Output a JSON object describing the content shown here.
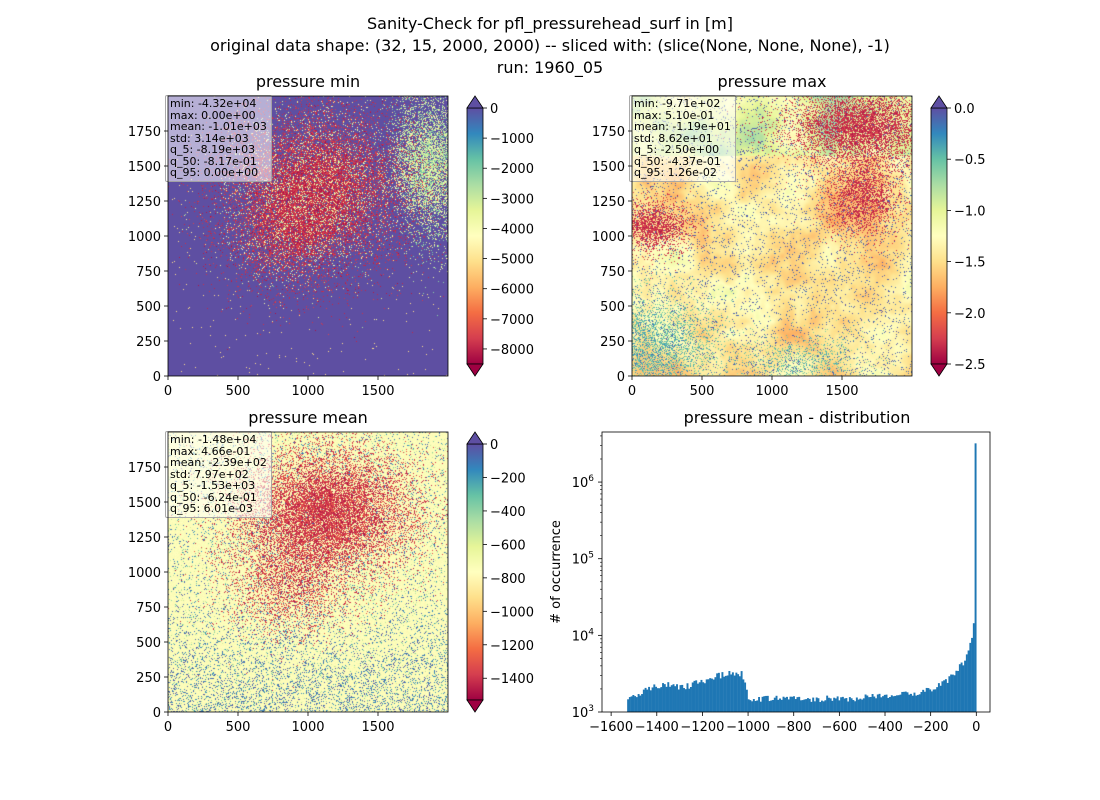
{
  "figure": {
    "title_line1": "Sanity-Check for pfl_pressurehead_surf in [m]",
    "title_line2": "original data shape: (32, 15, 2000, 2000) -- sliced with: (slice(None, None, None), -1)",
    "title_line3": "run: 1960_05"
  },
  "colors": {
    "spectral": [
      "#9e0142",
      "#d53e4f",
      "#f46d43",
      "#fdae61",
      "#fee08b",
      "#ffffbf",
      "#e6f598",
      "#abdda4",
      "#66c2a5",
      "#3288bd",
      "#5e4fa2"
    ],
    "hist_bar": "#1f77b4"
  },
  "panels": {
    "min": {
      "title": "pressure min",
      "stats": [
        "min: -4.32e+04",
        "max: 0.00e+00",
        "mean: -1.01e+03",
        "std: 3.14e+03",
        "q_5: -8.19e+03",
        "q_50: -8.17e-01",
        "q_95: 0.00e+00"
      ],
      "xticks": [
        "0",
        "500",
        "1000",
        "1500"
      ],
      "yticks": [
        "0",
        "250",
        "500",
        "750",
        "1000",
        "1250",
        "1500",
        "1750"
      ],
      "colorbar_ticks": [
        "0",
        "−1000",
        "−2000",
        "−3000",
        "−4000",
        "−5000",
        "−6000",
        "−7000",
        "−8000"
      ],
      "colorbar_range": [
        -8500,
        0
      ],
      "colorbar_extend": "both"
    },
    "max": {
      "title": "pressure max",
      "stats": [
        "min: -9.71e+02",
        "max: 5.10e-01",
        "mean: -1.19e+01",
        "std: 8.62e+01",
        "q_5: -2.50e+00",
        "q_50: -4.37e-01",
        "q_95: 1.26e-02"
      ],
      "xticks": [
        "0",
        "500",
        "1000",
        "1500"
      ],
      "yticks": [
        "0",
        "250",
        "500",
        "750",
        "1000",
        "1250",
        "1500",
        "1750"
      ],
      "colorbar_ticks": [
        "0.0",
        "−0.5",
        "−1.0",
        "−1.5",
        "−2.0",
        "−2.5"
      ],
      "colorbar_range": [
        -2.5,
        0
      ],
      "colorbar_extend": "both"
    },
    "mean": {
      "title": "pressure mean",
      "stats": [
        "min: -1.48e+04",
        "max: 4.66e-01",
        "mean: -2.39e+02",
        "std: 7.97e+02",
        "q_5: -1.53e+03",
        "q_50: -6.24e-01",
        "q_95: 6.01e-03"
      ],
      "xticks": [
        "0",
        "500",
        "1000",
        "1500"
      ],
      "yticks": [
        "0",
        "250",
        "500",
        "750",
        "1000",
        "1250",
        "1500",
        "1750"
      ],
      "colorbar_ticks": [
        "0",
        "−200",
        "−400",
        "−600",
        "−800",
        "−1000",
        "−1200",
        "−1400"
      ],
      "colorbar_range": [
        -1530,
        0
      ],
      "colorbar_extend": "both"
    }
  },
  "chart_data": {
    "type": "bar",
    "title": "pressure mean - distribution",
    "xlabel": "",
    "ylabel": "# of occurrence",
    "yscale": "log",
    "xlim": [
      -1640,
      60
    ],
    "ylim": [
      1000,
      4500000
    ],
    "xticks": [
      -1600,
      -1400,
      -1200,
      -1000,
      -800,
      -600,
      -400,
      -200,
      0
    ],
    "xtick_labels": [
      "−1600",
      "−1400",
      "−1200",
      "−1000",
      "−800",
      "−600",
      "−400",
      "−200",
      "0"
    ],
    "yticks": [
      1000,
      10000,
      100000,
      1000000
    ],
    "ytick_base": "10",
    "ytick_exponents": [
      "3",
      "4",
      "5",
      "6"
    ],
    "bin_width": 7.65,
    "bin_centers_approx": [
      -1526,
      -1500,
      -1450,
      -1400,
      -1350,
      -1300,
      -1250,
      -1200,
      -1150,
      -1110,
      -1070,
      -1040,
      -1030,
      -1010,
      -1000,
      -980,
      -950,
      -900,
      -850,
      -800,
      -750,
      -700,
      -650,
      -600,
      -550,
      -500,
      -450,
      -400,
      -350,
      -300,
      -250,
      -200,
      -150,
      -100,
      -75,
      -50,
      -35,
      -25,
      -15,
      -8,
      -3
    ],
    "counts_approx": [
      1500,
      1650,
      1900,
      2200,
      2250,
      2150,
      2250,
      2550,
      2900,
      3100,
      3200,
      3100,
      3250,
      2200,
      1600,
      1500,
      1450,
      1500,
      1500,
      1550,
      1500,
      1450,
      1500,
      1550,
      1500,
      1550,
      1600,
      1650,
      1700,
      1700,
      1850,
      2000,
      2300,
      3000,
      3800,
      4800,
      6000,
      8000,
      11000,
      18000,
      3200000
    ]
  }
}
